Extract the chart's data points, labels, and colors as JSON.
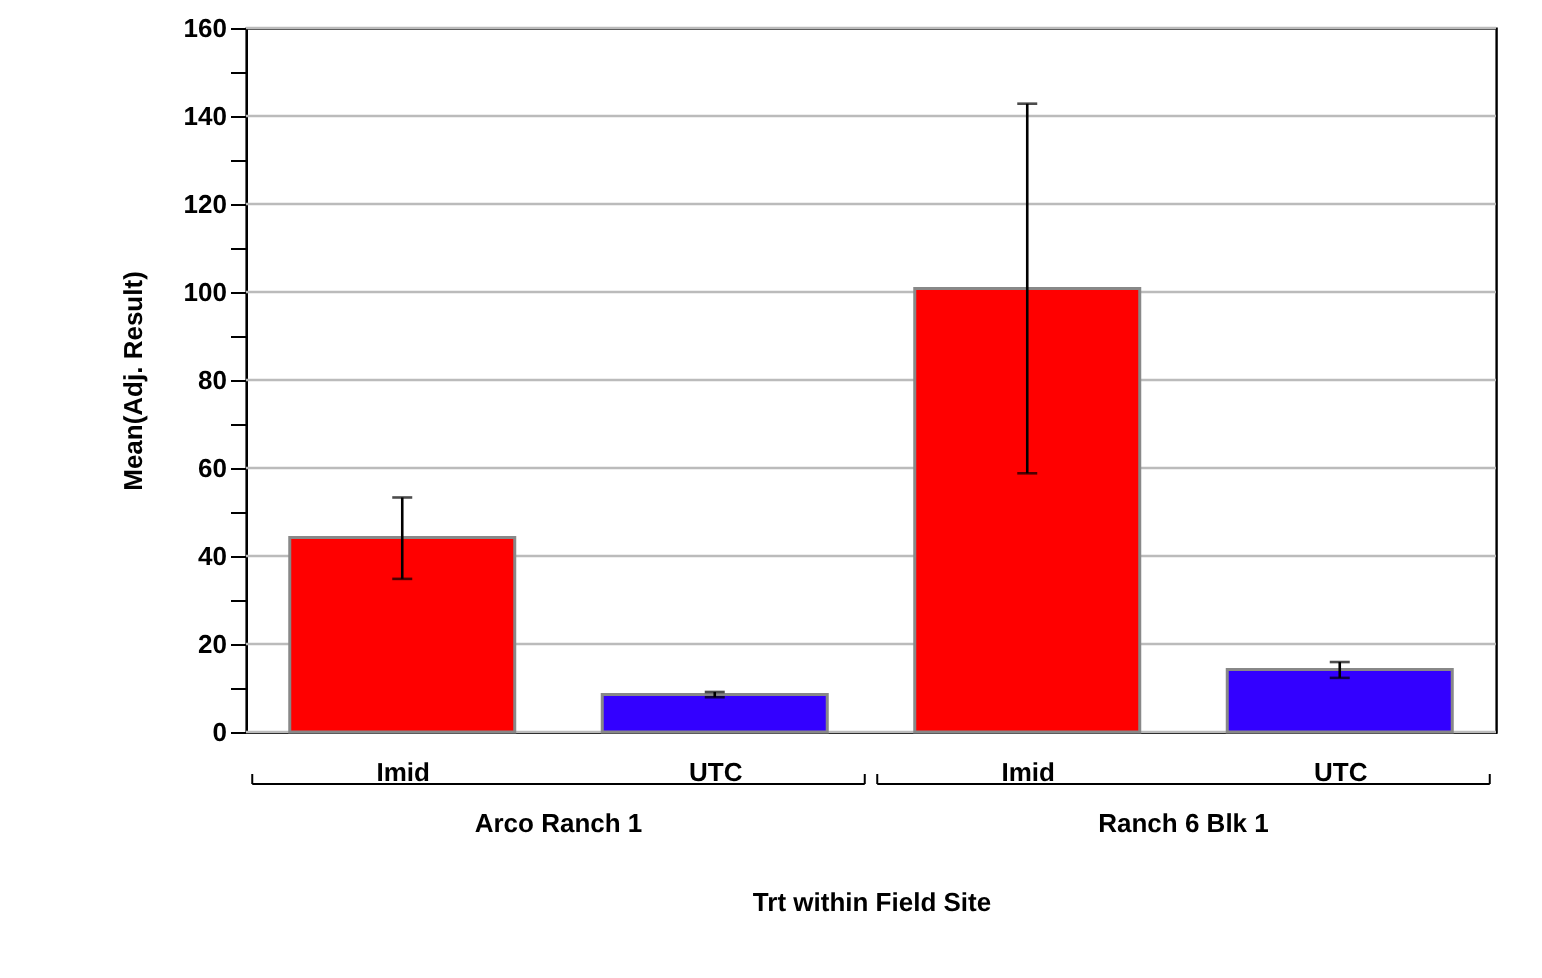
{
  "chart_data": {
    "type": "bar",
    "xlabel": "Trt within Field Site",
    "ylabel": "Mean(Adj. Result)",
    "categories": [
      "Imid",
      "UTC",
      "Imid",
      "UTC"
    ],
    "values": [
      44.2,
      8.5,
      100.8,
      14.2
    ],
    "colors": [
      "#ff0000",
      "#3300ff",
      "#ff0000",
      "#3300ff"
    ],
    "errors": [
      [
        34.8,
        53.3
      ],
      [
        7.9,
        9.1
      ],
      [
        58.8,
        142.8
      ],
      [
        12.3,
        15.9
      ]
    ],
    "annotations": [
      "Arco Ranch 1",
      "Ranch 6 Blk 1"
    ],
    "ylim": [
      0,
      160
    ],
    "yticks": [
      0,
      {
        "value": 10,
        "label": null
      },
      20,
      {
        "value": 30,
        "label": null
      },
      40,
      {
        "value": 50,
        "label": null
      },
      60,
      {
        "value": 70,
        "label": null
      },
      80,
      {
        "value": 90,
        "label": null
      },
      100,
      {
        "value": 110,
        "label": null
      },
      120,
      {
        "value": 130,
        "label": null
      },
      140,
      {
        "value": 150,
        "label": null
      },
      160
    ],
    "grid": "y"
  }
}
